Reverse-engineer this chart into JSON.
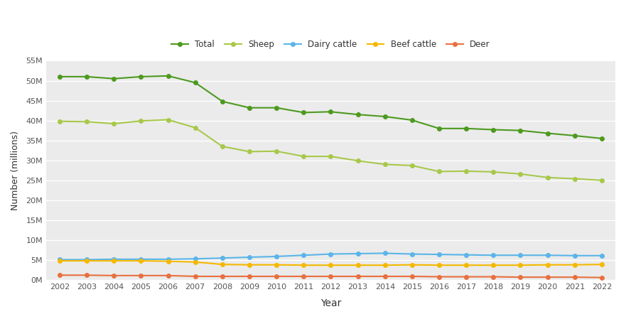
{
  "years": [
    2002,
    2003,
    2004,
    2005,
    2006,
    2007,
    2008,
    2009,
    2010,
    2011,
    2012,
    2013,
    2014,
    2015,
    2016,
    2017,
    2018,
    2019,
    2020,
    2021,
    2022
  ],
  "total": [
    51000000,
    51000000,
    50500000,
    51000000,
    51200000,
    49500000,
    44800000,
    43200000,
    43200000,
    42000000,
    42200000,
    41500000,
    41000000,
    40100000,
    38000000,
    38000000,
    37700000,
    37500000,
    36800000,
    36200000,
    35500000
  ],
  "sheep": [
    39800000,
    39700000,
    39200000,
    39900000,
    40200000,
    38200000,
    33500000,
    32200000,
    32300000,
    31000000,
    31000000,
    29900000,
    29000000,
    28700000,
    27200000,
    27300000,
    27100000,
    26600000,
    25700000,
    25400000,
    25000000
  ],
  "dairy_cattle": [
    5100000,
    5100000,
    5200000,
    5200000,
    5200000,
    5300000,
    5500000,
    5700000,
    5900000,
    6200000,
    6500000,
    6600000,
    6700000,
    6500000,
    6400000,
    6300000,
    6200000,
    6200000,
    6200000,
    6100000,
    6100000
  ],
  "beef_cattle": [
    4800000,
    4800000,
    4800000,
    4800000,
    4700000,
    4500000,
    3900000,
    3800000,
    3800000,
    3700000,
    3700000,
    3700000,
    3700000,
    3800000,
    3700000,
    3700000,
    3700000,
    3700000,
    3800000,
    3800000,
    3900000
  ],
  "deer": [
    1200000,
    1200000,
    1100000,
    1100000,
    1100000,
    900000,
    900000,
    900000,
    900000,
    900000,
    900000,
    900000,
    900000,
    900000,
    800000,
    800000,
    800000,
    700000,
    700000,
    700000,
    600000
  ],
  "colors": {
    "total": "#4d9a1f",
    "sheep": "#a8c84a",
    "dairy_cattle": "#5ab5e8",
    "beef_cattle": "#f5b800",
    "deer": "#e87040"
  },
  "xlabel": "Year",
  "ylabel": "Number (millions)",
  "ylim_min": 0,
  "ylim_max": 55000000,
  "fig_bg_color": "#ffffff",
  "plot_bg_color": "#ebebeb",
  "grid_color": "#ffffff",
  "tick_label_color": "#555555",
  "axis_label_color": "#333333",
  "legend_label_color": "#333333",
  "legend_labels": [
    "Total",
    "Sheep",
    "Dairy cattle",
    "Beef cattle",
    "Deer"
  ]
}
